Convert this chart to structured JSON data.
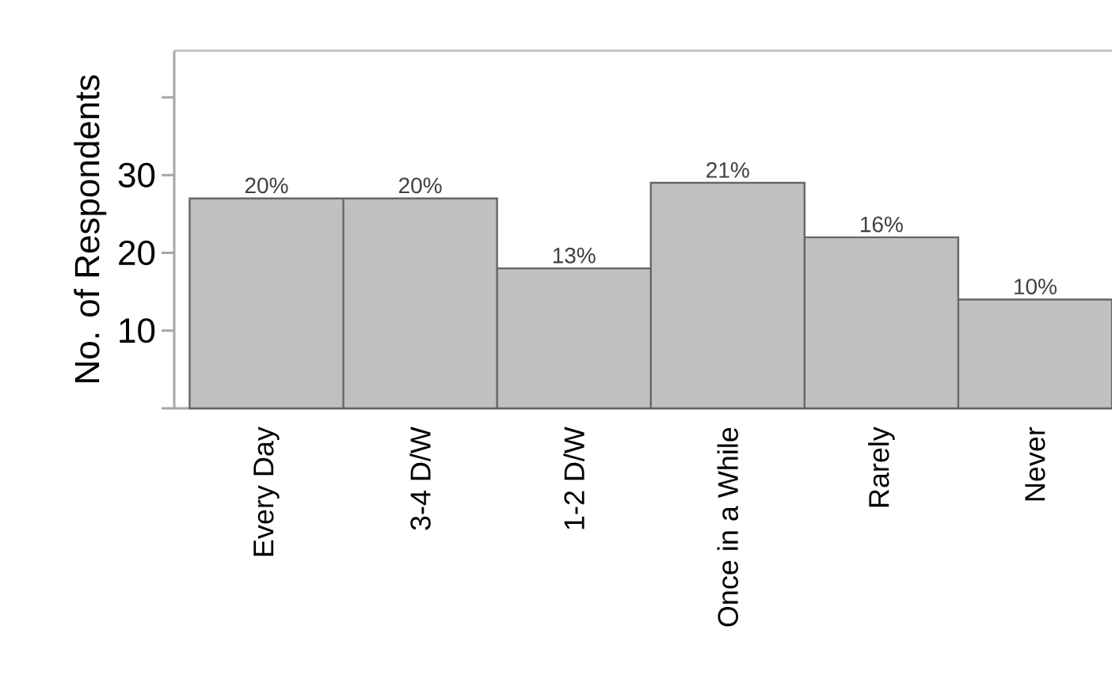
{
  "chart_data": {
    "type": "bar",
    "ylabel": "No. of Respondents",
    "categories": [
      "Every Day",
      "3-4 D/W",
      "1-2 D/W",
      "Once in a While",
      "Rarely",
      "Never"
    ],
    "values": [
      27,
      27,
      18,
      29,
      22,
      14
    ],
    "annotations": [
      {
        "text": "20%",
        "x": "Every Day",
        "y": 27
      },
      {
        "text": "20%",
        "x": "3-4 D/W",
        "y": 27
      },
      {
        "text": "13%",
        "x": "1-2 D/W",
        "y": 18
      },
      {
        "text": "21%",
        "x": "Once in a While",
        "y": 29
      },
      {
        "text": "16%",
        "x": "Rarely",
        "y": 22
      },
      {
        "text": "10%",
        "x": "Never",
        "y": 14
      }
    ],
    "color": "#c0c0c0",
    "ylim": [
      0,
      46
    ],
    "yticks": [
      {
        "value": 0,
        "label": null
      },
      10,
      20,
      30,
      {
        "value": 40,
        "label": null
      }
    ],
    "grid": false
  }
}
